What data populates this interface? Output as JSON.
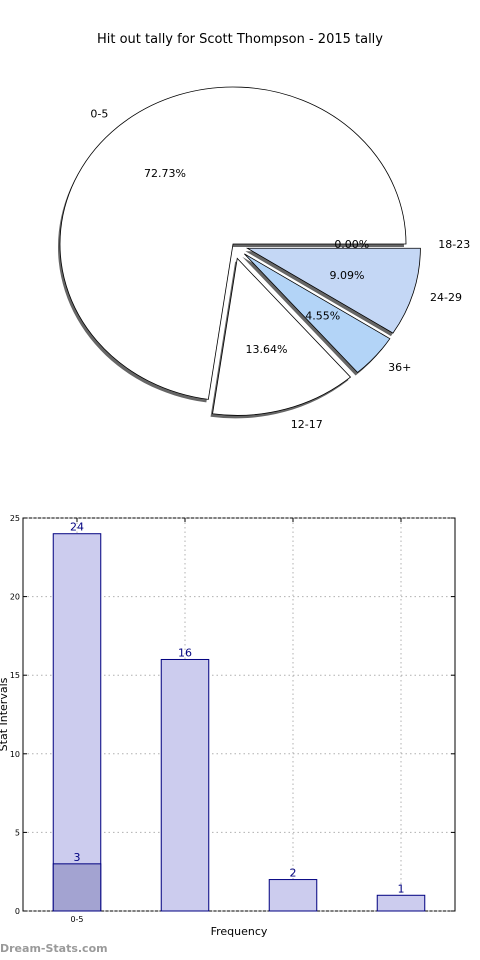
{
  "chart_data": [
    {
      "type": "pie",
      "title": "Hit out tally for Scott Thompson - 2015 tally",
      "slices": [
        {
          "label": "0-5",
          "pct_label": "72.73%",
          "value": 72.73,
          "color": "#ffffff"
        },
        {
          "label": "12-17",
          "pct_label": "13.64%",
          "value": 13.64,
          "color": "#ffffff"
        },
        {
          "label": "36+",
          "pct_label": "4.55%",
          "value": 4.55,
          "color": "#b3d4f7"
        },
        {
          "label": "24-29",
          "pct_label": "9.09%",
          "value": 9.09,
          "color": "#c4d7f5"
        },
        {
          "label": "18-23",
          "pct_label": "0.00%",
          "value": 0,
          "color": "#ffffff"
        }
      ]
    },
    {
      "type": "bar",
      "xlabel": "Frequency",
      "ylabel": "Stat Intervals",
      "ylim": [
        0,
        25
      ],
      "yticks": [
        0,
        5,
        10,
        15,
        20,
        25
      ],
      "categories": [
        "0-5",
        "",
        "",
        ""
      ],
      "series": [
        {
          "values": [
            24,
            16,
            2,
            1
          ],
          "color": "#ccccee"
        },
        {
          "values": [
            3,
            null,
            null,
            null
          ],
          "color": "#a3a3d1"
        }
      ]
    }
  ],
  "watermark": "Dream-Stats.com"
}
